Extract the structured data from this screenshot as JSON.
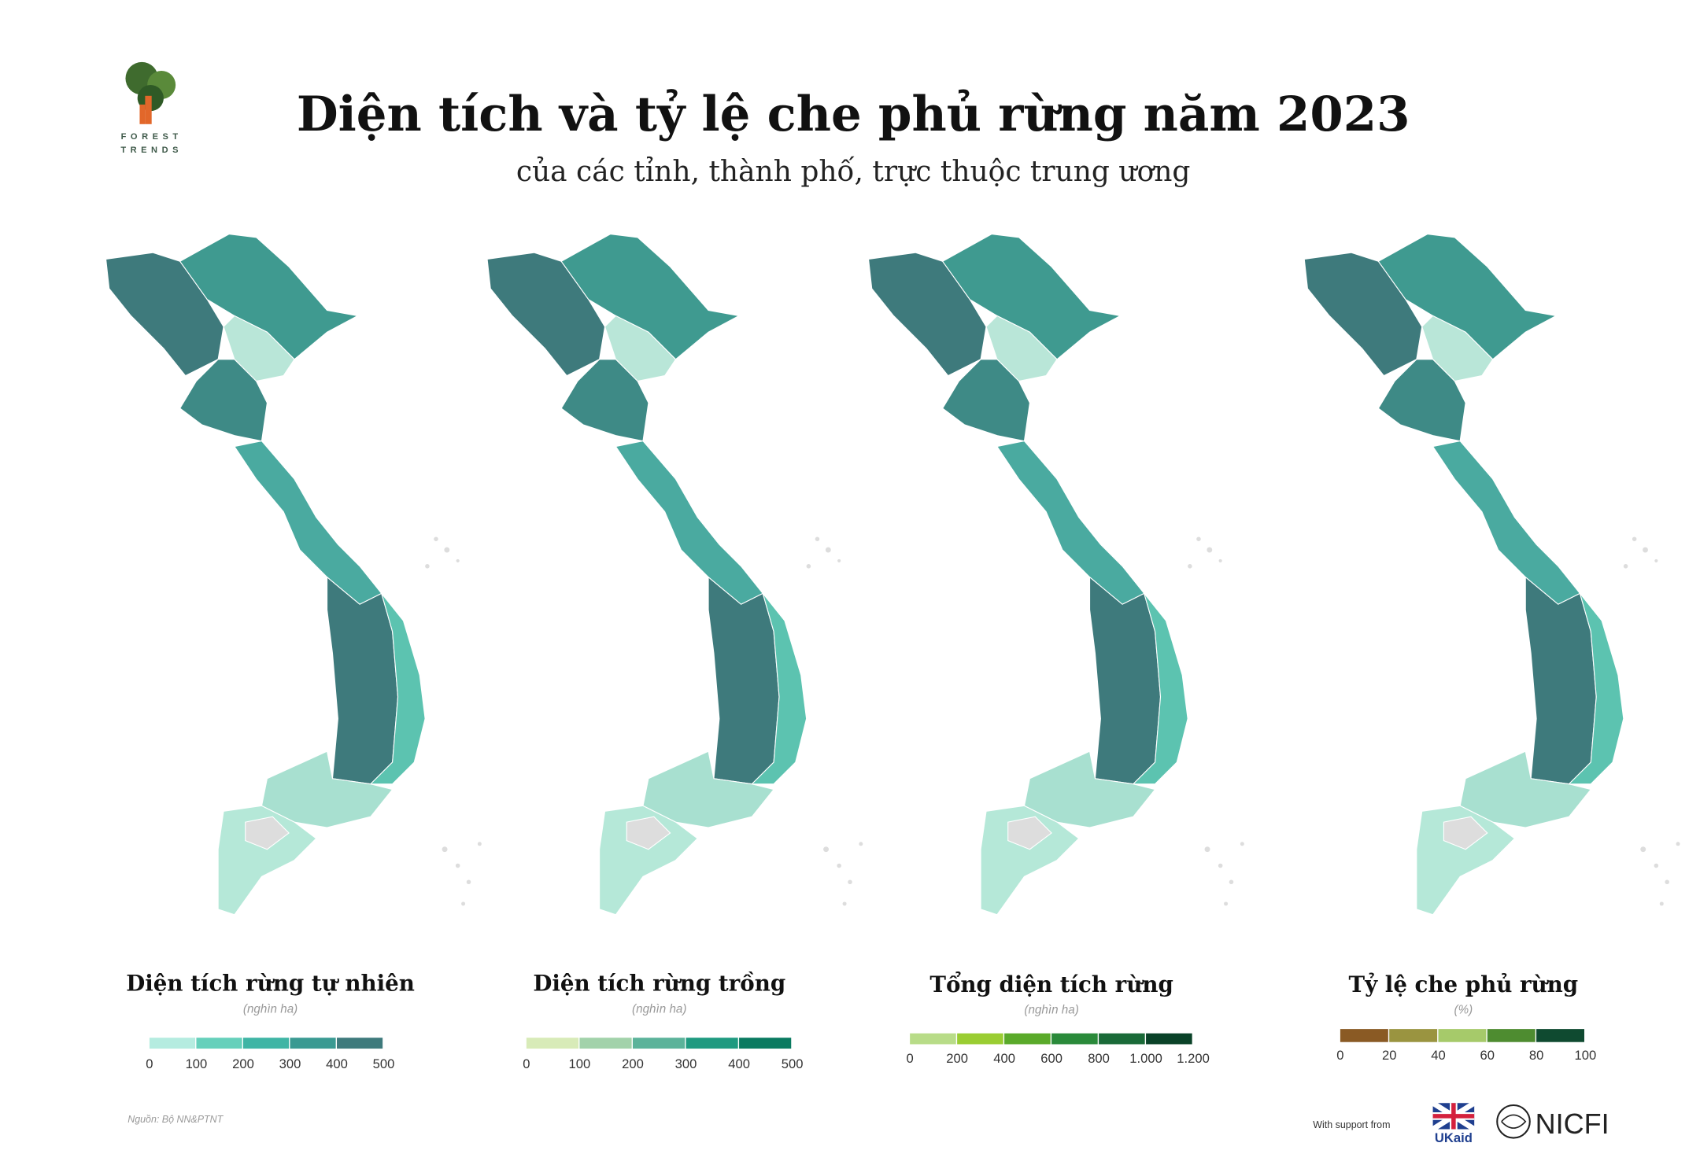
{
  "header": {
    "logo_top": "FOREST",
    "logo_bottom": "TRENDS",
    "title": "Diện tích và tỷ lệ che phủ rừng năm 2023",
    "subtitle": "của các tỉnh, thành phố, trực thuộc trung ương"
  },
  "legends": [
    {
      "title": "Diện tích rừng tự nhiên",
      "unit": "(nghìn ha)",
      "colors": [
        "#b5ece0",
        "#66d0bb",
        "#3fb5a5",
        "#3a9a92",
        "#3e7a7c"
      ],
      "ticks": [
        0,
        100,
        200,
        300,
        400,
        500
      ]
    },
    {
      "title": "Diện tích rừng trồng",
      "unit": "(nghìn ha)",
      "colors": [
        "#d8ebb8",
        "#a2d2aa",
        "#5bb39a",
        "#1f9a80",
        "#0a7a60"
      ],
      "ticks": [
        0,
        100,
        200,
        300,
        400,
        500
      ]
    },
    {
      "title": "Tổng diện tích rừng",
      "unit": "(nghìn ha)",
      "colors": [
        "#b8dc88",
        "#9acd32",
        "#5aaa2a",
        "#2a8a3a",
        "#1a6a38",
        "#0a4228"
      ],
      "ticks": [
        0,
        200,
        400,
        600,
        800,
        {
          "value": 1000,
          "label": "1.000"
        },
        {
          "value": 1200,
          "label": "1.200"
        }
      ]
    },
    {
      "title": "Tỷ lệ che phủ rừng",
      "unit": "(%)",
      "colors": [
        "#8a5a24",
        "#9a9440",
        "#a6ca6a",
        "#4e8c30",
        "#0f4a30"
      ],
      "ticks": [
        0,
        20,
        40,
        60,
        80,
        100
      ]
    }
  ],
  "footer": {
    "source": "Nguồn: Bộ NN&PTNT",
    "support": "With support from",
    "ukaid": "UKaid",
    "nicfi": "NICFI"
  }
}
